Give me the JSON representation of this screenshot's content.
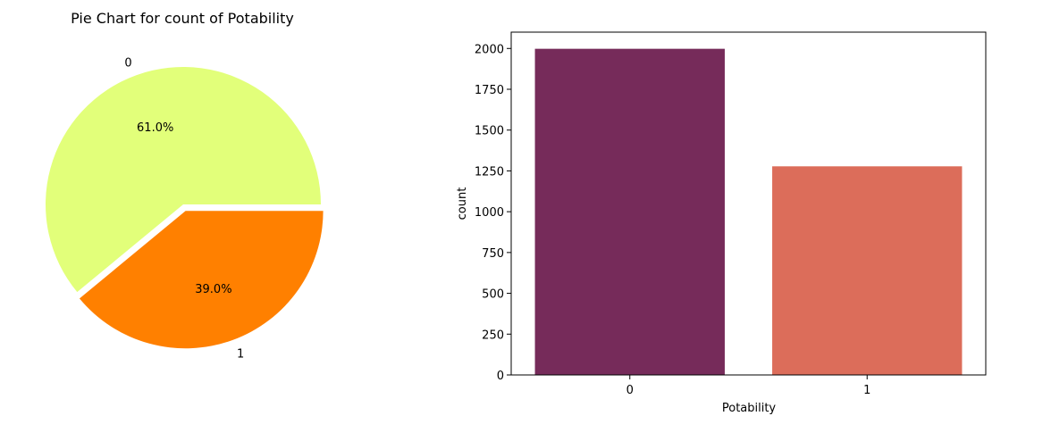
{
  "chart_data": [
    {
      "type": "pie",
      "title": "Pie Chart for count of Potability",
      "labels": [
        "0",
        "1"
      ],
      "values": [
        61.0,
        39.0
      ],
      "percent_labels": [
        "61.0%",
        "39.0%"
      ],
      "colors": [
        "#e2ff7a",
        "#ff8000"
      ],
      "explode_slice": "1"
    },
    {
      "type": "bar",
      "title": "",
      "categories": [
        "0",
        "1"
      ],
      "values": [
        1998,
        1278
      ],
      "colors": [
        "#762b5a",
        "#dc6d5a"
      ],
      "xlabel": "Potability",
      "ylabel": "count",
      "ylim": [
        0,
        2100
      ],
      "yticks": [
        "0",
        "250",
        "500",
        "750",
        "1000",
        "1250",
        "1500",
        "1750",
        "2000"
      ],
      "grid": false
    }
  ]
}
